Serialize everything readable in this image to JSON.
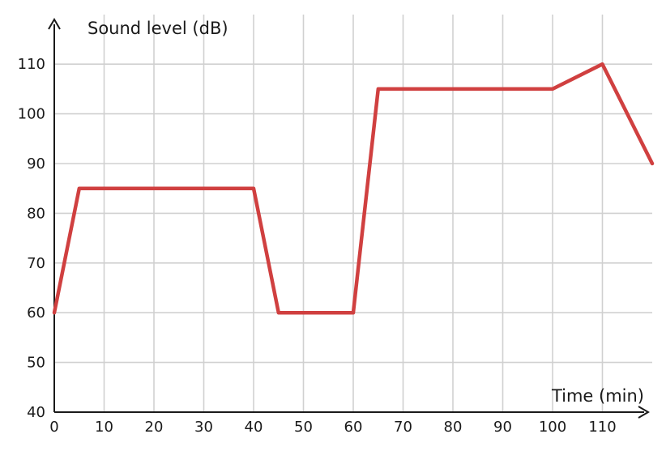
{
  "chart_data": {
    "type": "line",
    "xlabel": "Time (min)",
    "ylabel": "Sound level (dB)",
    "xlim": [
      0,
      120
    ],
    "ylim": [
      40,
      120
    ],
    "x_ticks": [
      0,
      10,
      20,
      30,
      40,
      50,
      60,
      70,
      80,
      90,
      100,
      110
    ],
    "y_ticks": [
      40,
      50,
      60,
      70,
      80,
      90,
      100,
      110
    ],
    "grid": true,
    "series": [
      {
        "color": "#d04040",
        "x": [
          0,
          5,
          40,
          45,
          60,
          65,
          100,
          110,
          120
        ],
        "y": [
          60,
          85,
          85,
          60,
          60,
          105,
          105,
          110,
          90
        ]
      }
    ]
  }
}
